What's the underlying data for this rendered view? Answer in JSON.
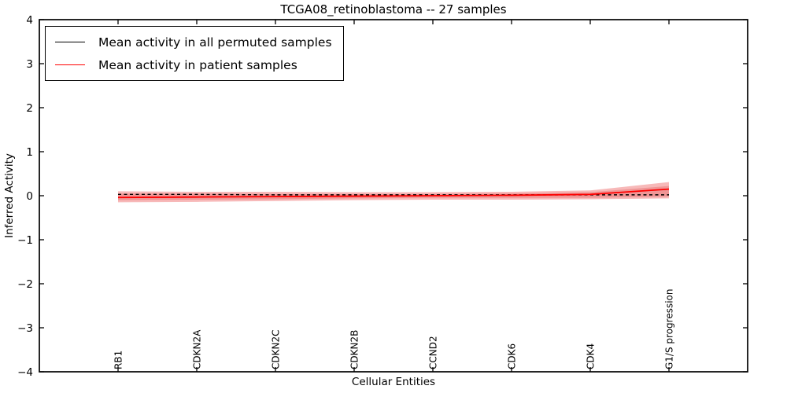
{
  "chart_data": {
    "type": "line",
    "title": "TCGA08_retinoblastoma -- 27 samples",
    "xlabel": "Cellular Entities",
    "ylabel": "Inferred Activity",
    "ylim": [
      -4,
      4
    ],
    "xlim": [
      0,
      9
    ],
    "grid": false,
    "legend_position": "upper-left",
    "yticks": [
      4,
      3,
      2,
      1,
      0,
      -1,
      -2,
      -3,
      -4
    ],
    "yticklabels": [
      "4",
      "3",
      "2",
      "1",
      "0",
      "−1",
      "−2",
      "−3",
      "−4"
    ],
    "categories": [
      "RB1",
      "CDKN2A",
      "CDKN2C",
      "CDKN2B",
      "CCND2",
      "CDK6",
      "CDK4",
      "G1/S progression"
    ],
    "series": [
      {
        "name": "Mean activity in all permuted samples",
        "color": "#000000",
        "style": "dashed",
        "width": 1.4,
        "values": [
          0.03,
          0.03,
          0.02,
          0.02,
          0.02,
          0.02,
          0.02,
          0.02
        ]
      },
      {
        "name": "Mean activity in patient samples",
        "color": "#ff0000",
        "style": "solid",
        "width": 1.8,
        "values": [
          -0.04,
          -0.03,
          -0.02,
          -0.01,
          0.0,
          0.01,
          0.03,
          0.15
        ]
      }
    ],
    "bands": [
      {
        "name": "patient-band-outer",
        "color": "#f08080",
        "opacity": 0.55,
        "upper": [
          0.1,
          0.09,
          0.09,
          0.08,
          0.08,
          0.09,
          0.12,
          0.31
        ],
        "lower": [
          -0.15,
          -0.14,
          -0.12,
          -0.1,
          -0.09,
          -0.09,
          -0.08,
          -0.06
        ]
      },
      {
        "name": "patient-band-inner",
        "color": "#e05555",
        "opacity": 0.35,
        "upper": [
          0.05,
          0.05,
          0.04,
          0.04,
          0.04,
          0.05,
          0.08,
          0.22
        ],
        "lower": [
          -0.1,
          -0.09,
          -0.08,
          -0.06,
          -0.05,
          -0.05,
          -0.05,
          -0.02
        ]
      }
    ]
  }
}
